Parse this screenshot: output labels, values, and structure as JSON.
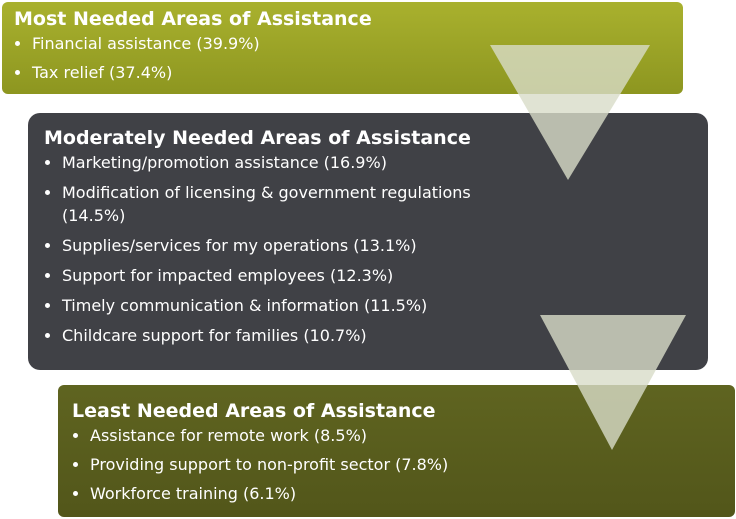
{
  "sections": [
    {
      "title": "Most Needed Areas of Assistance",
      "items": [
        "Financial assistance (39.9%)",
        "Tax relief (37.4%)"
      ]
    },
    {
      "title": "Moderately Needed Areas of Assistance",
      "items": [
        "Marketing/promotion assistance (16.9%)",
        "Modification of licensing & government regulations (14.5%)",
        "Supplies/services for my operations (13.1%)",
        "Support for impacted employees (12.3%)",
        "Timely communication & information (11.5%)",
        "Childcare support for families (10.7%)"
      ]
    },
    {
      "title": "Least Needed Areas of Assistance",
      "items": [
        "Assistance for remote work (8.5%)",
        "Providing support to non-profit sector (7.8%)",
        "Workforce training (6.1%)"
      ]
    }
  ]
}
